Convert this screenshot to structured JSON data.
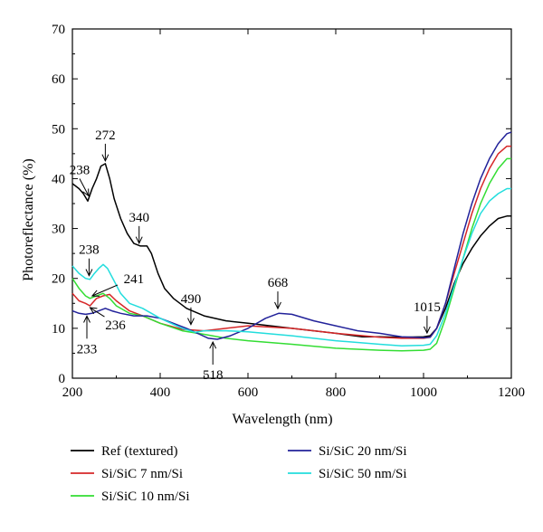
{
  "chart_data": {
    "type": "line",
    "xlabel": "Wavelength (nm)",
    "ylabel": "Photoreflectance (%)",
    "xlim": [
      200,
      1200
    ],
    "ylim": [
      0,
      70
    ],
    "xticks": [
      200,
      400,
      600,
      800,
      1000,
      1200
    ],
    "yticks": [
      0,
      10,
      20,
      30,
      40,
      50,
      60,
      70
    ],
    "grid": false,
    "legend_position": "bottom",
    "series": [
      {
        "name": "Ref (textured)",
        "color": "#000000",
        "points": [
          [
            200,
            39
          ],
          [
            215,
            38
          ],
          [
            225,
            37
          ],
          [
            235,
            35.5
          ],
          [
            245,
            38
          ],
          [
            255,
            40
          ],
          [
            265,
            42.5
          ],
          [
            275,
            43
          ],
          [
            285,
            40
          ],
          [
            295,
            36
          ],
          [
            310,
            32
          ],
          [
            325,
            29
          ],
          [
            340,
            27
          ],
          [
            355,
            26.5
          ],
          [
            370,
            26.5
          ],
          [
            380,
            25
          ],
          [
            395,
            21
          ],
          [
            410,
            18
          ],
          [
            430,
            16
          ],
          [
            460,
            14
          ],
          [
            500,
            12.5
          ],
          [
            550,
            11.5
          ],
          [
            600,
            11
          ],
          [
            700,
            10
          ],
          [
            800,
            9
          ],
          [
            860,
            8.3
          ],
          [
            900,
            8.3
          ],
          [
            950,
            8.2
          ],
          [
            1000,
            8.3
          ],
          [
            1015,
            8.5
          ],
          [
            1030,
            10
          ],
          [
            1050,
            14
          ],
          [
            1070,
            19
          ],
          [
            1090,
            23
          ],
          [
            1110,
            26
          ],
          [
            1130,
            28.5
          ],
          [
            1150,
            30.5
          ],
          [
            1170,
            32
          ],
          [
            1190,
            32.5
          ],
          [
            1200,
            32.5
          ]
        ]
      },
      {
        "name": "Si/SiC 7 nm/Si",
        "color": "#d62728",
        "points": [
          [
            200,
            17
          ],
          [
            215,
            15.5
          ],
          [
            230,
            15
          ],
          [
            240,
            14.5
          ],
          [
            255,
            16
          ],
          [
            270,
            16.5
          ],
          [
            285,
            16.8
          ],
          [
            300,
            15.5
          ],
          [
            330,
            13.5
          ],
          [
            360,
            12.5
          ],
          [
            400,
            11
          ],
          [
            450,
            9.8
          ],
          [
            500,
            9.5
          ],
          [
            550,
            10
          ],
          [
            600,
            10.5
          ],
          [
            700,
            10
          ],
          [
            800,
            9
          ],
          [
            900,
            8.2
          ],
          [
            950,
            8
          ],
          [
            1000,
            8
          ],
          [
            1015,
            8.2
          ],
          [
            1030,
            10
          ],
          [
            1050,
            15
          ],
          [
            1070,
            21
          ],
          [
            1090,
            27
          ],
          [
            1110,
            33
          ],
          [
            1130,
            38
          ],
          [
            1150,
            42
          ],
          [
            1170,
            45
          ],
          [
            1190,
            46.5
          ],
          [
            1200,
            46.5
          ]
        ]
      },
      {
        "name": "Si/SiC 10 nm/Si",
        "color": "#33dd33",
        "points": [
          [
            200,
            20
          ],
          [
            215,
            18
          ],
          [
            230,
            16.5
          ],
          [
            240,
            16
          ],
          [
            255,
            16.5
          ],
          [
            270,
            17
          ],
          [
            285,
            16
          ],
          [
            300,
            14.5
          ],
          [
            330,
            13
          ],
          [
            360,
            12.5
          ],
          [
            400,
            11
          ],
          [
            450,
            9.5
          ],
          [
            500,
            8.8
          ],
          [
            550,
            8
          ],
          [
            600,
            7.5
          ],
          [
            700,
            6.8
          ],
          [
            800,
            6
          ],
          [
            900,
            5.6
          ],
          [
            950,
            5.5
          ],
          [
            1000,
            5.6
          ],
          [
            1015,
            5.8
          ],
          [
            1030,
            7
          ],
          [
            1050,
            12
          ],
          [
            1070,
            18
          ],
          [
            1090,
            24
          ],
          [
            1110,
            30
          ],
          [
            1130,
            35
          ],
          [
            1150,
            39
          ],
          [
            1170,
            42
          ],
          [
            1190,
            44
          ],
          [
            1200,
            44
          ]
        ]
      },
      {
        "name": "Si/SiC 20 nm/Si",
        "color": "#22229a",
        "points": [
          [
            200,
            13.5
          ],
          [
            215,
            13
          ],
          [
            230,
            12.8
          ],
          [
            245,
            13
          ],
          [
            260,
            13.5
          ],
          [
            275,
            14
          ],
          [
            290,
            13.5
          ],
          [
            310,
            13
          ],
          [
            340,
            12.5
          ],
          [
            370,
            12.5
          ],
          [
            400,
            12
          ],
          [
            430,
            11
          ],
          [
            460,
            10
          ],
          [
            490,
            8.8
          ],
          [
            510,
            8
          ],
          [
            530,
            7.8
          ],
          [
            560,
            8.5
          ],
          [
            600,
            10
          ],
          [
            640,
            12
          ],
          [
            670,
            13
          ],
          [
            700,
            12.8
          ],
          [
            750,
            11.5
          ],
          [
            800,
            10.5
          ],
          [
            850,
            9.5
          ],
          [
            900,
            9
          ],
          [
            950,
            8.3
          ],
          [
            1000,
            8.1
          ],
          [
            1015,
            8.2
          ],
          [
            1030,
            10
          ],
          [
            1050,
            15
          ],
          [
            1070,
            22
          ],
          [
            1090,
            29
          ],
          [
            1110,
            35
          ],
          [
            1130,
            40
          ],
          [
            1150,
            44
          ],
          [
            1170,
            47
          ],
          [
            1190,
            49
          ],
          [
            1200,
            49.3
          ]
        ]
      },
      {
        "name": "Si/SiC 50 nm/Si",
        "color": "#22dddd",
        "points": [
          [
            200,
            22.5
          ],
          [
            215,
            21
          ],
          [
            230,
            20
          ],
          [
            240,
            19.8
          ],
          [
            250,
            21
          ],
          [
            260,
            22
          ],
          [
            270,
            22.8
          ],
          [
            280,
            22
          ],
          [
            295,
            19.5
          ],
          [
            310,
            17
          ],
          [
            330,
            15
          ],
          [
            360,
            14
          ],
          [
            400,
            12
          ],
          [
            450,
            10
          ],
          [
            480,
            9.2
          ],
          [
            500,
            9.5
          ],
          [
            550,
            9.5
          ],
          [
            600,
            9.3
          ],
          [
            700,
            8.5
          ],
          [
            800,
            7.5
          ],
          [
            900,
            6.8
          ],
          [
            950,
            6.5
          ],
          [
            1000,
            6.6
          ],
          [
            1015,
            6.8
          ],
          [
            1030,
            8.5
          ],
          [
            1050,
            13
          ],
          [
            1070,
            18.5
          ],
          [
            1090,
            24
          ],
          [
            1110,
            29
          ],
          [
            1130,
            33
          ],
          [
            1150,
            35.5
          ],
          [
            1170,
            37
          ],
          [
            1190,
            38
          ],
          [
            1200,
            38
          ]
        ]
      }
    ],
    "annotations": [
      {
        "text": "272",
        "x": 275,
        "y": 43,
        "dir": "down",
        "dx": 0
      },
      {
        "text": "238",
        "x": 237,
        "y": 36,
        "dir": "down",
        "dx": -10
      },
      {
        "text": "340",
        "x": 352,
        "y": 26.5,
        "dir": "down",
        "dx": 0
      },
      {
        "text": "238",
        "x": 238,
        "y": 20,
        "dir": "down",
        "dx": 0
      },
      {
        "text": "241",
        "x": 241,
        "y": 16.5,
        "dir": "label-right",
        "dx": 0
      },
      {
        "text": "236",
        "x": 236,
        "y": 14.5,
        "dir": "label-below-right",
        "dx": 0
      },
      {
        "text": "233",
        "x": 233,
        "y": 13,
        "dir": "up",
        "dx": 0
      },
      {
        "text": "490",
        "x": 470,
        "y": 10.2,
        "dir": "down",
        "dx": 0
      },
      {
        "text": "518",
        "x": 520,
        "y": 7.8,
        "dir": "up",
        "dx": 0
      },
      {
        "text": "668",
        "x": 668,
        "y": 13.4,
        "dir": "down",
        "dx": 0
      },
      {
        "text": "1015",
        "x": 1008,
        "y": 8.5,
        "dir": "down",
        "dx": 0
      }
    ]
  }
}
